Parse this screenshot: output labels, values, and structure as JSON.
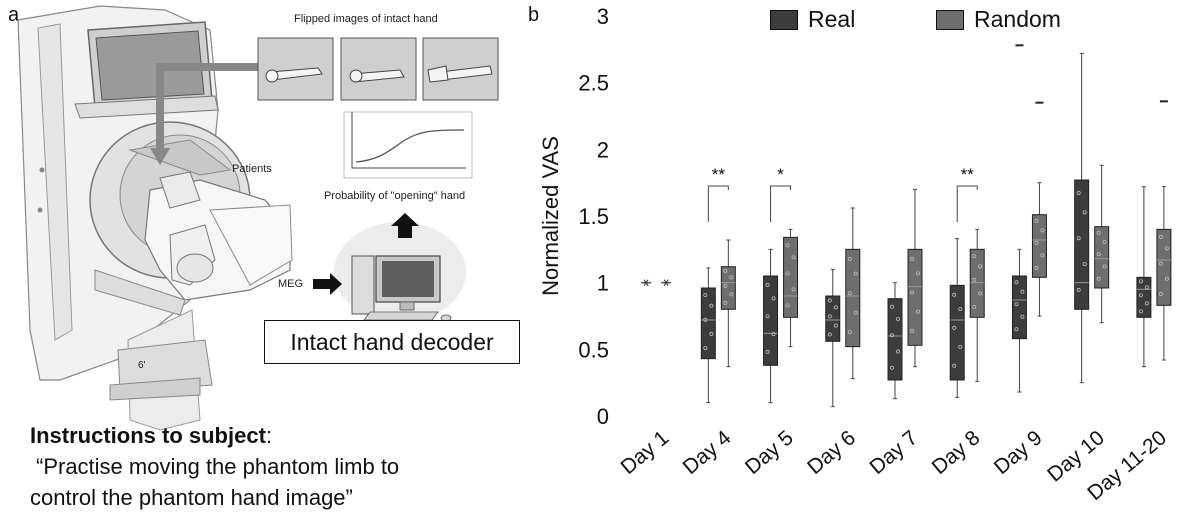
{
  "panel_a": {
    "letter": "a",
    "flipped_label": "Flipped images of intact hand",
    "patients_label": "Patients",
    "probability_label": "Probability of \"opening\" hand",
    "meg_label": "MEG",
    "decoder_label": "Intact hand decoder",
    "instructions_heading": "Instructions to subject",
    "instructions_colon": ":",
    "instructions_line1": "“Practise moving the phantom limb to",
    "instructions_line2": "control the phantom hand image”",
    "scanner_mark": "6'"
  },
  "chart_data": {
    "panel_letter": "b",
    "type": "box",
    "ylabel": "Normalized VAS",
    "ylim": [
      0,
      3
    ],
    "yticks": [
      "0",
      "0.5",
      "1",
      "1.5",
      "2",
      "2.5",
      "3"
    ],
    "categories": [
      "Day 1",
      "Day 4",
      "Day 5",
      "Day 6",
      "Day 7",
      "Day 8",
      "Day 9",
      "Day 10",
      "Day 11-20"
    ],
    "legend": [
      {
        "name": "Real",
        "color": "#3c3c3c"
      },
      {
        "name": "Random",
        "color": "#6e6e6e"
      }
    ],
    "series": [
      {
        "name": "Real",
        "color": "#3c3c3c",
        "boxes": [
          {
            "min": 1.0,
            "q1": 1.0,
            "median": 1.0,
            "q3": 1.0,
            "max": 1.0
          },
          {
            "min": 0.1,
            "q1": 0.43,
            "median": 0.72,
            "q3": 0.96,
            "max": 1.11
          },
          {
            "min": 0.1,
            "q1": 0.38,
            "median": 0.62,
            "q3": 1.05,
            "max": 1.25
          },
          {
            "min": 0.07,
            "q1": 0.56,
            "median": 0.72,
            "q3": 0.9,
            "max": 1.1
          },
          {
            "min": 0.13,
            "q1": 0.27,
            "median": 0.6,
            "q3": 0.88,
            "max": 1.0
          },
          {
            "min": 0.14,
            "q1": 0.27,
            "median": 0.72,
            "q3": 0.98,
            "max": 1.33
          },
          {
            "min": 0.18,
            "q1": 0.58,
            "median": 0.87,
            "q3": 1.05,
            "max": 1.25
          },
          {
            "min": 0.25,
            "q1": 0.8,
            "median": 1.0,
            "q3": 1.77,
            "max": 2.72
          },
          {
            "min": 0.37,
            "q1": 0.74,
            "median": 0.95,
            "q3": 1.04,
            "max": 1.72
          }
        ],
        "outliers": [
          [],
          [],
          [],
          [],
          [],
          [],
          [
            2.78
          ],
          [],
          []
        ]
      },
      {
        "name": "Random",
        "color": "#6e6e6e",
        "boxes": [
          {
            "min": 1.0,
            "q1": 1.0,
            "median": 1.0,
            "q3": 1.0,
            "max": 1.0
          },
          {
            "min": 0.37,
            "q1": 0.8,
            "median": 1.0,
            "q3": 1.12,
            "max": 1.32
          },
          {
            "min": 0.52,
            "q1": 0.74,
            "median": 0.9,
            "q3": 1.34,
            "max": 1.4
          },
          {
            "min": 0.28,
            "q1": 0.52,
            "median": 0.9,
            "q3": 1.25,
            "max": 1.56
          },
          {
            "min": 0.37,
            "q1": 0.53,
            "median": 0.97,
            "q3": 1.25,
            "max": 1.7
          },
          {
            "min": 0.26,
            "q1": 0.74,
            "median": 1.0,
            "q3": 1.25,
            "max": 1.4
          },
          {
            "min": 0.75,
            "q1": 1.04,
            "median": 1.32,
            "q3": 1.51,
            "max": 1.75
          },
          {
            "min": 0.7,
            "q1": 0.96,
            "median": 1.18,
            "q3": 1.42,
            "max": 1.88
          },
          {
            "min": 0.42,
            "q1": 0.83,
            "median": 1.17,
            "q3": 1.4,
            "max": 1.72
          }
        ],
        "outliers": [
          [],
          [],
          [],
          [],
          [],
          [],
          [
            2.35
          ],
          [],
          [
            2.36
          ]
        ]
      }
    ],
    "significance": [
      {
        "category": "Day 4",
        "label": "**"
      },
      {
        "category": "Day 5",
        "label": "*"
      },
      {
        "category": "Day 8",
        "label": "**"
      }
    ]
  }
}
